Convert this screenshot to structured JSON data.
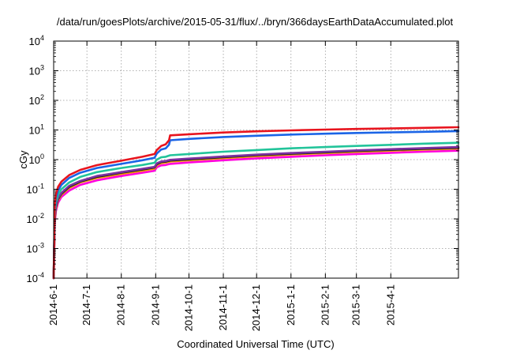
{
  "chart_data": {
    "type": "line",
    "title": "/data/run/goesPlots/archive/2015-05-31/flux/../bryn/366daysEarthDataAccumulated.plot",
    "xlabel": "Coordinated Universal Time (UTC)",
    "ylabel": "cGy",
    "y_scale": "log",
    "ylim": [
      0.0001,
      10000
    ],
    "xlim": [
      "2014-06-01",
      "2015-06-01"
    ],
    "grid": true,
    "legend": "none",
    "x_ticks": [
      {
        "label": "2014-6-1",
        "date": "2014-06-01"
      },
      {
        "label": "2014-7-1",
        "date": "2014-07-01"
      },
      {
        "label": "2014-8-1",
        "date": "2014-08-01"
      },
      {
        "label": "2014-9-1",
        "date": "2014-09-01"
      },
      {
        "label": "2014-10-1",
        "date": "2014-10-01"
      },
      {
        "label": "2014-11-1",
        "date": "2014-11-01"
      },
      {
        "label": "2014-12-1",
        "date": "2014-12-01"
      },
      {
        "label": "2015-1-1",
        "date": "2015-01-01"
      },
      {
        "label": "2015-2-1",
        "date": "2015-02-01"
      },
      {
        "label": "2015-3-1",
        "date": "2015-03-01"
      },
      {
        "label": "2015-4-1",
        "date": "2015-04-01"
      }
    ],
    "y_ticks": [
      {
        "base": "10",
        "exp": "-4",
        "value": 0.0001
      },
      {
        "base": "10",
        "exp": "-3",
        "value": 0.001
      },
      {
        "base": "10",
        "exp": "-2",
        "value": 0.01
      },
      {
        "base": "10",
        "exp": "-1",
        "value": 0.1
      },
      {
        "base": "10",
        "exp": "0",
        "value": 1
      },
      {
        "base": "10",
        "exp": "1",
        "value": 10
      },
      {
        "base": "10",
        "exp": "2",
        "value": 100
      },
      {
        "base": "10",
        "exp": "3",
        "value": 1000
      },
      {
        "base": "10",
        "exp": "4",
        "value": 10000
      }
    ],
    "series": [
      {
        "color": "#ff00dd",
        "points": [
          [
            "2014-06-01",
            0.0001
          ],
          [
            "2014-06-02",
            0.007
          ],
          [
            "2014-06-03",
            0.018
          ],
          [
            "2014-06-05",
            0.035
          ],
          [
            "2014-06-08",
            0.055
          ],
          [
            "2014-06-15",
            0.09
          ],
          [
            "2014-06-25",
            0.14
          ],
          [
            "2014-07-10",
            0.2
          ],
          [
            "2014-08-01",
            0.28
          ],
          [
            "2014-08-20",
            0.36
          ],
          [
            "2014-08-31",
            0.42
          ],
          [
            "2014-09-02",
            0.55
          ],
          [
            "2014-09-06",
            0.64
          ],
          [
            "2014-09-10",
            0.66
          ],
          [
            "2014-09-14",
            0.72
          ],
          [
            "2014-10-01",
            0.8
          ],
          [
            "2014-11-01",
            0.95
          ],
          [
            "2014-12-01",
            1.1
          ],
          [
            "2015-01-01",
            1.25
          ],
          [
            "2015-02-01",
            1.4
          ],
          [
            "2015-03-01",
            1.55
          ],
          [
            "2015-04-01",
            1.7
          ],
          [
            "2015-05-01",
            1.85
          ],
          [
            "2015-06-01",
            2.0
          ]
        ]
      },
      {
        "color": "#ff9900",
        "points": [
          [
            "2014-06-01",
            0.0001
          ],
          [
            "2014-06-02",
            0.009
          ],
          [
            "2014-06-03",
            0.022
          ],
          [
            "2014-06-05",
            0.042
          ],
          [
            "2014-06-08",
            0.065
          ],
          [
            "2014-06-15",
            0.11
          ],
          [
            "2014-06-25",
            0.17
          ],
          [
            "2014-07-10",
            0.24
          ],
          [
            "2014-08-01",
            0.33
          ],
          [
            "2014-08-20",
            0.42
          ],
          [
            "2014-08-31",
            0.5
          ],
          [
            "2014-09-02",
            0.65
          ],
          [
            "2014-09-06",
            0.76
          ],
          [
            "2014-09-10",
            0.79
          ],
          [
            "2014-09-14",
            0.86
          ],
          [
            "2014-10-01",
            0.95
          ],
          [
            "2014-11-01",
            1.12
          ],
          [
            "2014-12-01",
            1.3
          ],
          [
            "2015-01-01",
            1.48
          ],
          [
            "2015-02-01",
            1.65
          ],
          [
            "2015-03-01",
            1.82
          ],
          [
            "2015-04-01",
            2.0
          ],
          [
            "2015-05-01",
            2.18
          ],
          [
            "2015-06-01",
            2.35
          ]
        ]
      },
      {
        "color": "#222222",
        "points": [
          [
            "2014-06-01",
            0.0001
          ],
          [
            "2014-06-02",
            0.01
          ],
          [
            "2014-06-03",
            0.024
          ],
          [
            "2014-06-05",
            0.046
          ],
          [
            "2014-06-08",
            0.07
          ],
          [
            "2014-06-15",
            0.12
          ],
          [
            "2014-06-25",
            0.18
          ],
          [
            "2014-07-10",
            0.26
          ],
          [
            "2014-08-01",
            0.36
          ],
          [
            "2014-08-20",
            0.46
          ],
          [
            "2014-08-31",
            0.54
          ],
          [
            "2014-09-02",
            0.7
          ],
          [
            "2014-09-06",
            0.82
          ],
          [
            "2014-09-10",
            0.85
          ],
          [
            "2014-09-14",
            0.93
          ],
          [
            "2014-10-01",
            1.02
          ],
          [
            "2014-11-01",
            1.2
          ],
          [
            "2014-12-01",
            1.4
          ],
          [
            "2015-01-01",
            1.58
          ],
          [
            "2015-02-01",
            1.76
          ],
          [
            "2015-03-01",
            1.95
          ],
          [
            "2015-04-01",
            2.13
          ],
          [
            "2015-05-01",
            2.32
          ],
          [
            "2015-06-01",
            2.5
          ]
        ]
      },
      {
        "color": "#7c2fa0",
        "points": [
          [
            "2014-06-01",
            0.0001
          ],
          [
            "2014-06-02",
            0.011
          ],
          [
            "2014-06-03",
            0.026
          ],
          [
            "2014-06-05",
            0.05
          ],
          [
            "2014-06-08",
            0.075
          ],
          [
            "2014-06-15",
            0.13
          ],
          [
            "2014-06-25",
            0.19
          ],
          [
            "2014-07-10",
            0.28
          ],
          [
            "2014-08-01",
            0.38
          ],
          [
            "2014-08-20",
            0.49
          ],
          [
            "2014-08-31",
            0.57
          ],
          [
            "2014-09-02",
            0.75
          ],
          [
            "2014-09-06",
            0.87
          ],
          [
            "2014-09-10",
            0.9
          ],
          [
            "2014-09-14",
            0.98
          ],
          [
            "2014-10-01",
            1.08
          ],
          [
            "2014-11-01",
            1.27
          ],
          [
            "2014-12-01",
            1.47
          ],
          [
            "2015-01-01",
            1.66
          ],
          [
            "2015-02-01",
            1.85
          ],
          [
            "2015-03-01",
            2.05
          ],
          [
            "2015-04-01",
            2.25
          ],
          [
            "2015-05-01",
            2.45
          ],
          [
            "2015-06-01",
            2.65
          ]
        ]
      },
      {
        "color": "#22c49a",
        "points": [
          [
            "2014-06-01",
            0.0001
          ],
          [
            "2014-06-02",
            0.015
          ],
          [
            "2014-06-03",
            0.035
          ],
          [
            "2014-06-05",
            0.065
          ],
          [
            "2014-06-08",
            0.1
          ],
          [
            "2014-06-15",
            0.17
          ],
          [
            "2014-06-25",
            0.26
          ],
          [
            "2014-07-10",
            0.38
          ],
          [
            "2014-08-01",
            0.52
          ],
          [
            "2014-08-20",
            0.66
          ],
          [
            "2014-08-31",
            0.78
          ],
          [
            "2014-09-02",
            1.0
          ],
          [
            "2014-09-06",
            1.2
          ],
          [
            "2014-09-10",
            1.25
          ],
          [
            "2014-09-14",
            1.4
          ],
          [
            "2014-10-01",
            1.55
          ],
          [
            "2014-11-01",
            1.85
          ],
          [
            "2014-12-01",
            2.1
          ],
          [
            "2015-01-01",
            2.4
          ],
          [
            "2015-02-01",
            2.65
          ],
          [
            "2015-03-01",
            2.9
          ],
          [
            "2015-04-01",
            3.15
          ],
          [
            "2015-05-01",
            3.45
          ],
          [
            "2015-06-01",
            3.7
          ]
        ]
      },
      {
        "color": "#1a64e6",
        "points": [
          [
            "2014-06-01",
            0.0001
          ],
          [
            "2014-06-02",
            0.022
          ],
          [
            "2014-06-03",
            0.05
          ],
          [
            "2014-06-05",
            0.09
          ],
          [
            "2014-06-08",
            0.14
          ],
          [
            "2014-06-15",
            0.24
          ],
          [
            "2014-06-25",
            0.36
          ],
          [
            "2014-07-10",
            0.52
          ],
          [
            "2014-08-01",
            0.72
          ],
          [
            "2014-08-20",
            0.95
          ],
          [
            "2014-08-31",
            1.15
          ],
          [
            "2014-09-02",
            1.6
          ],
          [
            "2014-09-06",
            2.2
          ],
          [
            "2014-09-10",
            2.4
          ],
          [
            "2014-09-13",
            3.2
          ],
          [
            "2014-09-14",
            4.5
          ],
          [
            "2014-10-01",
            5.0
          ],
          [
            "2014-11-01",
            5.8
          ],
          [
            "2014-12-01",
            6.4
          ],
          [
            "2015-01-01",
            7.0
          ],
          [
            "2015-02-01",
            7.5
          ],
          [
            "2015-03-01",
            7.9
          ],
          [
            "2015-04-01",
            8.3
          ],
          [
            "2015-05-01",
            8.7
          ],
          [
            "2015-06-01",
            9.2
          ]
        ]
      },
      {
        "color": "#e8141e",
        "points": [
          [
            "2014-06-01",
            0.0001
          ],
          [
            "2014-06-02",
            0.03
          ],
          [
            "2014-06-03",
            0.065
          ],
          [
            "2014-06-05",
            0.12
          ],
          [
            "2014-06-08",
            0.18
          ],
          [
            "2014-06-15",
            0.3
          ],
          [
            "2014-06-25",
            0.45
          ],
          [
            "2014-07-10",
            0.65
          ],
          [
            "2014-08-01",
            0.92
          ],
          [
            "2014-08-20",
            1.25
          ],
          [
            "2014-08-31",
            1.55
          ],
          [
            "2014-09-02",
            2.1
          ],
          [
            "2014-09-06",
            2.9
          ],
          [
            "2014-09-10",
            3.3
          ],
          [
            "2014-09-13",
            4.5
          ],
          [
            "2014-09-14",
            6.6
          ],
          [
            "2014-10-01",
            7.2
          ],
          [
            "2014-11-01",
            8.2
          ],
          [
            "2014-12-01",
            9.0
          ],
          [
            "2015-01-01",
            9.7
          ],
          [
            "2015-02-01",
            10.3
          ],
          [
            "2015-03-01",
            10.8
          ],
          [
            "2015-04-01",
            11.3
          ],
          [
            "2015-05-01",
            11.8
          ],
          [
            "2015-06-01",
            12.4
          ]
        ]
      }
    ]
  }
}
